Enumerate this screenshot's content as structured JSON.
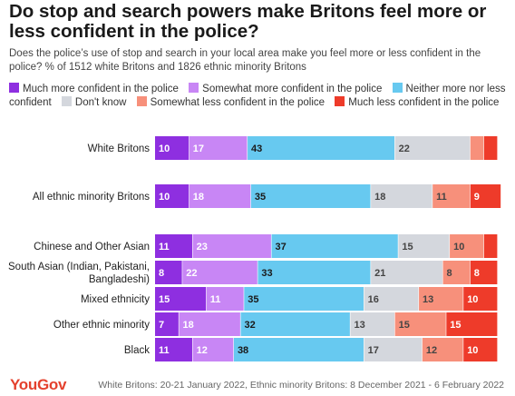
{
  "title": "Do stop and search powers make Britons feel more or less confident in the police?",
  "subtitle": "Does the police’s use of stop and search in your local area make you feel more or less confident in the police? % of 1512 white Britons and 1826 ethnic minority Britons",
  "footer": {
    "logo": "YouGov",
    "note": "White Britons: 20-21 January 2022, Ethnic minority Britons: 8 December 2021 - 6 February 2022"
  },
  "colors": {
    "much_more": "#8e2fe0",
    "somewhat_more": "#c886f5",
    "neither": "#67c9f0",
    "dont_know": "#d4d7dd",
    "somewhat_less": "#f7907b",
    "much_less": "#ee3b2a"
  },
  "chart_data": {
    "type": "bar",
    "orientation": "horizontal",
    "stacked": true,
    "xlim": [
      0,
      100
    ],
    "legend_position": "top",
    "series": [
      {
        "name": "Much more confident in the police",
        "color": "#8e2fe0",
        "labelColor": "#ffffff"
      },
      {
        "name": "Somewhat more confident in the police",
        "color": "#c886f5",
        "labelColor": "#ffffff"
      },
      {
        "name": "Neither more nor less confident",
        "color": "#67c9f0",
        "labelColor": "#1a1a1a"
      },
      {
        "name": "Don't know",
        "color": "#d4d7dd",
        "labelColor": "#444444"
      },
      {
        "name": "Somewhat less confident in the police",
        "color": "#f7907b",
        "labelColor": "#444444"
      },
      {
        "name": "Much less confident in the police",
        "color": "#ee3b2a",
        "labelColor": "#ffffff"
      }
    ],
    "rows": [
      {
        "category": [
          "White Britons"
        ],
        "values": [
          10,
          17,
          43,
          22,
          4,
          4
        ],
        "labels": [
          "10",
          "17",
          "43",
          "22",
          "",
          ""
        ],
        "group": 0
      },
      {
        "category": [
          "All ethnic minority Britons"
        ],
        "values": [
          10,
          18,
          35,
          18,
          11,
          9
        ],
        "labels": [
          "10",
          "18",
          "35",
          "18",
          "11",
          "9"
        ],
        "group": 1
      },
      {
        "category": [
          "Chinese and Other Asian"
        ],
        "values": [
          11,
          23,
          37,
          15,
          10,
          4
        ],
        "labels": [
          "11",
          "23",
          "37",
          "15",
          "10",
          ""
        ],
        "group": 2
      },
      {
        "category": [
          "South Asian (Indian, Pakistani,",
          "Bangladeshi)"
        ],
        "values": [
          8,
          22,
          33,
          21,
          8,
          8
        ],
        "labels": [
          "8",
          "22",
          "33",
          "21",
          "8",
          "8"
        ],
        "group": 2
      },
      {
        "category": [
          "Mixed ethnicity"
        ],
        "values": [
          15,
          11,
          35,
          16,
          13,
          10
        ],
        "labels": [
          "15",
          "11",
          "35",
          "16",
          "13",
          "10"
        ],
        "group": 2
      },
      {
        "category": [
          "Other ethnic minority"
        ],
        "values": [
          7,
          18,
          32,
          13,
          15,
          15
        ],
        "labels": [
          "7",
          "18",
          "32",
          "13",
          "15",
          "15"
        ],
        "group": 2
      },
      {
        "category": [
          "Black"
        ],
        "values": [
          11,
          12,
          38,
          17,
          12,
          10
        ],
        "labels": [
          "11",
          "12",
          "38",
          "17",
          "12",
          "10"
        ],
        "group": 2
      }
    ]
  }
}
